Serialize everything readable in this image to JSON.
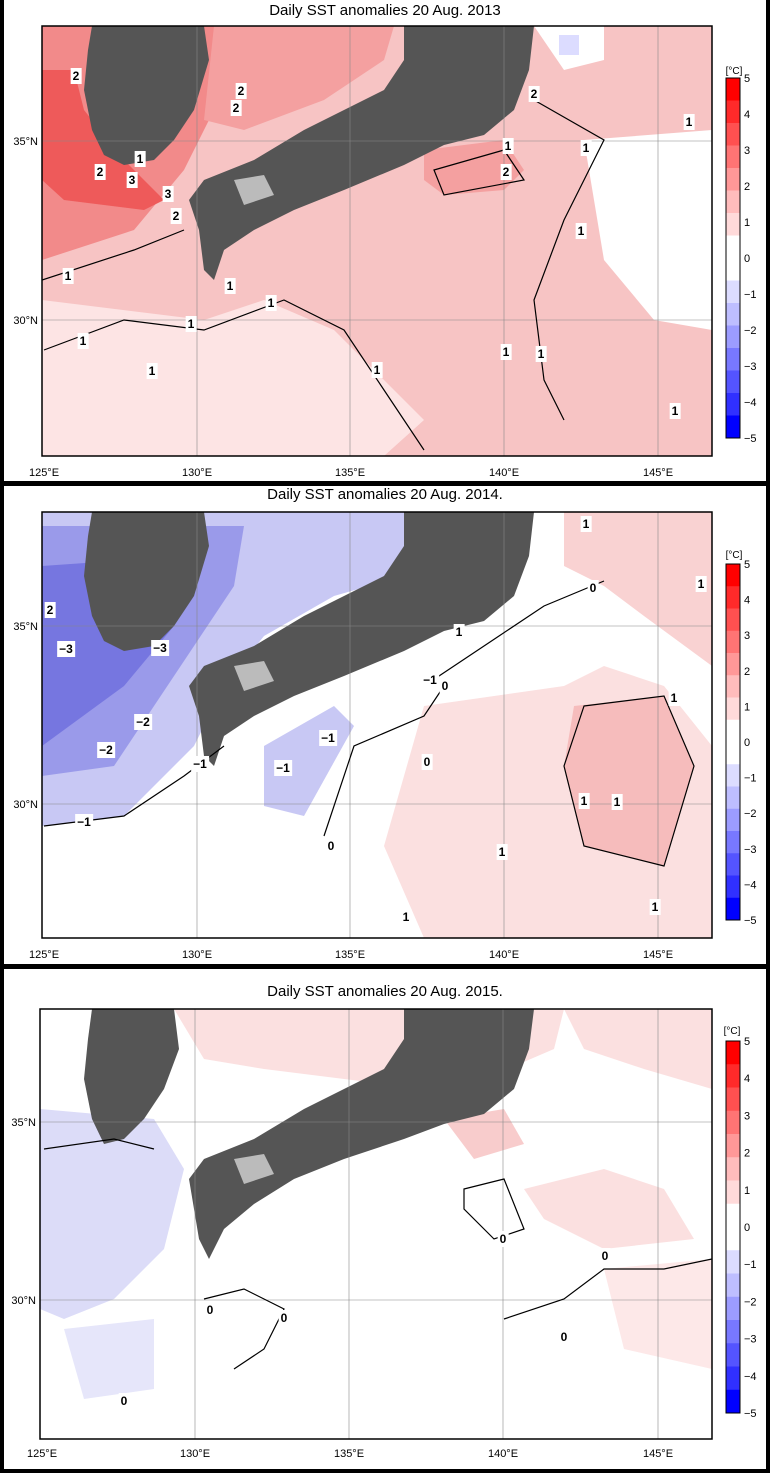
{
  "panels": [
    {
      "title": "Daily SST anomalies 20 Aug. 2013",
      "base_fill": "#f7c4c4",
      "contour_labels": [
        "2",
        "2",
        "2",
        "2",
        "1",
        "1",
        "2",
        "3",
        "3",
        "2",
        "2",
        "1",
        "1",
        "1",
        "1",
        "1",
        "1",
        "1",
        "1",
        "1",
        "1",
        "1",
        "1",
        "1"
      ]
    },
    {
      "title": "Daily SST anomalies 20 Aug. 2014.",
      "base_fill": "#ffffff",
      "contour_labels": [
        "1",
        "1",
        "0",
        "2",
        "1",
        "−3",
        "−3",
        "−1",
        "0",
        "−2",
        "−2",
        "−1",
        "−1",
        "−1",
        "0",
        "−1",
        "0",
        "1",
        "1",
        "1",
        "1",
        "1",
        "1"
      ]
    },
    {
      "title": "Daily SST anomalies 20 Aug. 2015.",
      "base_fill": "#ffffff",
      "contour_labels": [
        "0",
        "0",
        "0",
        "0",
        "0",
        "0"
      ]
    }
  ],
  "axes": {
    "x_ticks": [
      "125°E",
      "130°E",
      "135°E",
      "140°E",
      "145°E"
    ],
    "y_ticks": [
      "35°N",
      "30°N"
    ]
  },
  "colorbar": {
    "unit": "[°C]",
    "labels": [
      "5",
      "4",
      "3",
      "2",
      "1",
      "0",
      "−1",
      "−2",
      "−3",
      "−4",
      "−5"
    ],
    "colors": [
      "#ff0000",
      "#ff2a2a",
      "#ff5050",
      "#ff7474",
      "#ff9898",
      "#ffbcbc",
      "#ffdada",
      "#ffffff",
      "#ffffff",
      "#dcdcff",
      "#bebeff",
      "#9c9cff",
      "#7878ff",
      "#5454ff",
      "#3030ff",
      "#0000ff"
    ]
  }
}
